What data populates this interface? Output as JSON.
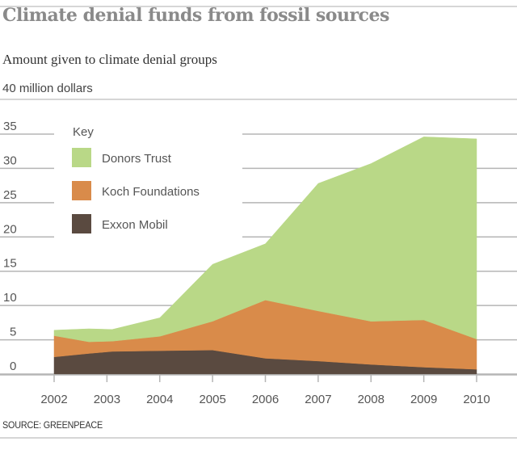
{
  "chart_data": {
    "type": "area",
    "stacked": true,
    "title": "Climate denial funds from fossil sources",
    "subtitle": "Amount given to climate denial groups",
    "ylabel": "40 million dollars",
    "source": "SOURCE: GREENPEACE",
    "legend_title": "Key",
    "legend_position": "top-left",
    "ylim": [
      0,
      35
    ],
    "yticks": [
      0,
      5,
      10,
      15,
      20,
      25,
      30,
      35
    ],
    "xticks": [
      2002,
      2003,
      2004,
      2005,
      2006,
      2007,
      2008,
      2009,
      2010
    ],
    "xlim": [
      2002,
      2010
    ],
    "x": [
      2002,
      2002.66,
      2003.1,
      2004,
      2005,
      2006,
      2007,
      2008,
      2009,
      2010
    ],
    "series": [
      {
        "name": "Exxon Mobil",
        "color": "#5a4a40",
        "values": [
          2.5,
          3.0,
          3.3,
          3.4,
          3.5,
          2.3,
          1.9,
          1.4,
          1.0,
          0.7
        ]
      },
      {
        "name": "Koch Foundations",
        "color": "#d98b4a",
        "values": [
          3.1,
          1.7,
          1.5,
          2.1,
          4.2,
          8.5,
          7.3,
          6.3,
          6.9,
          4.4
        ]
      },
      {
        "name": "Donors Trust",
        "color": "#b9d887",
        "values": [
          0.8,
          1.9,
          1.7,
          2.7,
          8.3,
          8.2,
          18.6,
          23.0,
          26.7,
          29.2
        ]
      }
    ],
    "grid": true
  }
}
